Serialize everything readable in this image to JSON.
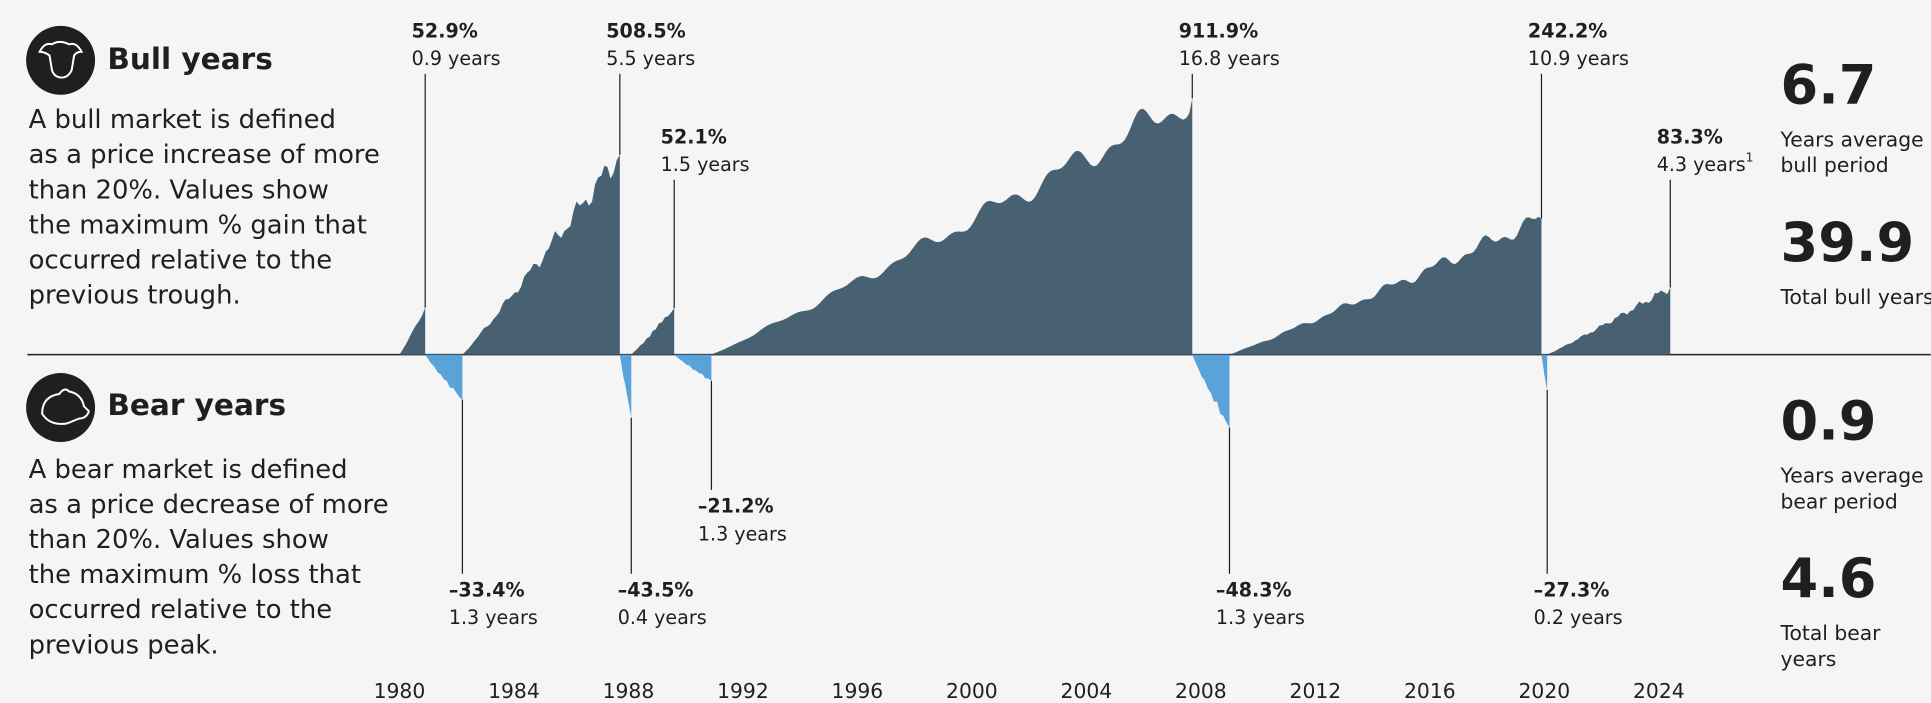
{
  "chart_data": {
    "type": "bull-bear",
    "xlim": [
      1967,
      2033.5
    ],
    "xticks": [
      1980,
      1984,
      1988,
      1992,
      1996,
      2000,
      2004,
      2008,
      2012,
      2016,
      2020,
      2024
    ],
    "scale": "log",
    "footnote_mark": "1",
    "series": [
      {
        "name": "Bull years",
        "color": "#476072",
        "description": [
          "A bull market is defined",
          "as a price increase of more",
          "than 20%. Values show",
          "the maximum % gain that",
          "occurred relative to the",
          "previous trough."
        ],
        "values": [
          52.9,
          508.5,
          52.1,
          911.9,
          242.2,
          83.3
        ],
        "value_labels": [
          "52.9%",
          "508.5%",
          "52.1%",
          "911.9%",
          "242.2%",
          "83.3%"
        ],
        "durations": [
          0.9,
          5.5,
          1.5,
          16.8,
          10.9,
          4.3
        ],
        "duration_labels": [
          "0.9 years",
          "5.5 years",
          "1.5 years",
          "16.8 years",
          "10.9 years",
          "4.3 years"
        ],
        "stats": [
          {
            "value": 6.7,
            "label": [
              "Years average",
              "bull period"
            ]
          },
          {
            "value": 39.9,
            "label": [
              "Total bull years"
            ]
          }
        ]
      },
      {
        "name": "Bear years",
        "color": "#5aa3d8",
        "description": [
          "A bear market is defined",
          "as a price decrease of more",
          "than 20%. Values show",
          "the maximum % loss that",
          "occurred relative to the",
          "previous peak."
        ],
        "values": [
          -33.4,
          -43.5,
          -21.2,
          -48.3,
          -27.3
        ],
        "value_labels": [
          "–33.4%",
          "–43.5%",
          "–21.2%",
          "–48.3%",
          "–27.3%"
        ],
        "durations": [
          1.3,
          0.4,
          1.3,
          1.3,
          0.2
        ],
        "duration_labels": [
          "1.3 years",
          "0.4 years",
          "1.3 years",
          "1.3 years",
          "0.2 years"
        ],
        "stats": [
          {
            "value": 0.9,
            "label": [
              "Years average",
              "bear period"
            ]
          },
          {
            "value": 4.6,
            "label": [
              "Total bear",
              "years"
            ]
          }
        ]
      }
    ]
  }
}
